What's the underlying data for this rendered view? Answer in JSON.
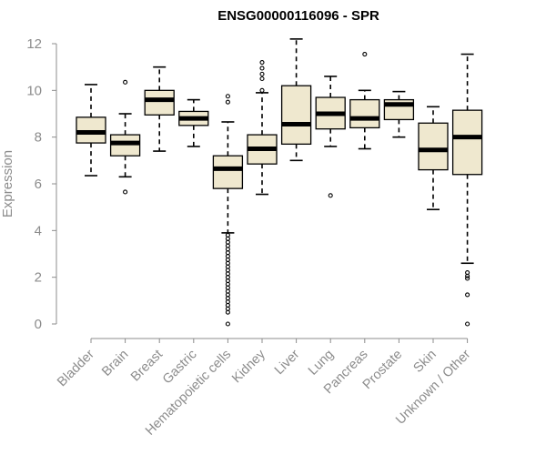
{
  "chart_data": {
    "type": "boxplot",
    "title": "ENSG00000116096 - SPR",
    "xlabel": "",
    "ylabel": "Expression",
    "ylim": [
      0,
      12
    ],
    "yticks": [
      0,
      2,
      4,
      6,
      8,
      10,
      12
    ],
    "categories": [
      "Bladder",
      "Brain",
      "Breast",
      "Gastric",
      "Hematopoietic cells",
      "Kidney",
      "Liver",
      "Lung",
      "Pancreas",
      "Prostate",
      "Skin",
      "Unknown / Other"
    ],
    "boxes": [
      {
        "whisker_low": 6.35,
        "q1": 7.75,
        "median": 8.2,
        "q3": 8.85,
        "whisker_high": 10.25,
        "outliers": []
      },
      {
        "whisker_low": 6.3,
        "q1": 7.2,
        "median": 7.75,
        "q3": 8.1,
        "whisker_high": 9.0,
        "outliers": [
          5.65,
          10.35
        ]
      },
      {
        "whisker_low": 7.4,
        "q1": 8.95,
        "median": 9.6,
        "q3": 10.0,
        "whisker_high": 11.0,
        "outliers": []
      },
      {
        "whisker_low": 7.6,
        "q1": 8.5,
        "median": 8.8,
        "q3": 9.1,
        "whisker_high": 9.6,
        "outliers": []
      },
      {
        "whisker_low": 3.9,
        "q1": 5.8,
        "median": 6.65,
        "q3": 7.2,
        "whisker_high": 8.65,
        "outliers": [
          9.5,
          9.75,
          3.8,
          3.65,
          3.5,
          3.35,
          3.2,
          3.05,
          2.9,
          2.75,
          2.6,
          2.45,
          2.3,
          2.15,
          2.0,
          1.85,
          1.7,
          1.55,
          1.4,
          1.25,
          1.1,
          0.95,
          0.8,
          0.65,
          0.5,
          0.0
        ]
      },
      {
        "whisker_low": 5.55,
        "q1": 6.85,
        "median": 7.5,
        "q3": 8.1,
        "whisker_high": 9.9,
        "outliers": [
          10.0,
          10.5,
          10.7,
          10.95,
          11.2
        ]
      },
      {
        "whisker_low": 7.0,
        "q1": 7.7,
        "median": 8.55,
        "q3": 10.2,
        "whisker_high": 12.2,
        "outliers": []
      },
      {
        "whisker_low": 7.6,
        "q1": 8.35,
        "median": 9.0,
        "q3": 9.7,
        "whisker_high": 10.6,
        "outliers": [
          5.5
        ]
      },
      {
        "whisker_low": 7.5,
        "q1": 8.4,
        "median": 8.8,
        "q3": 9.6,
        "whisker_high": 10.0,
        "outliers": [
          11.55
        ]
      },
      {
        "whisker_low": 8.0,
        "q1": 8.75,
        "median": 9.4,
        "q3": 9.6,
        "whisker_high": 9.95,
        "outliers": []
      },
      {
        "whisker_low": 4.9,
        "q1": 6.6,
        "median": 7.45,
        "q3": 8.6,
        "whisker_high": 9.3,
        "outliers": []
      },
      {
        "whisker_low": 2.6,
        "q1": 6.4,
        "median": 8.0,
        "q3": 9.15,
        "whisker_high": 11.55,
        "outliers": [
          2.2,
          2.05,
          1.95,
          1.25,
          0.0
        ]
      }
    ],
    "colors": {
      "box_fill": "#efe8cf",
      "axis": "#8c8c8c",
      "title": "#000000"
    },
    "grid": false,
    "legend": "none"
  }
}
